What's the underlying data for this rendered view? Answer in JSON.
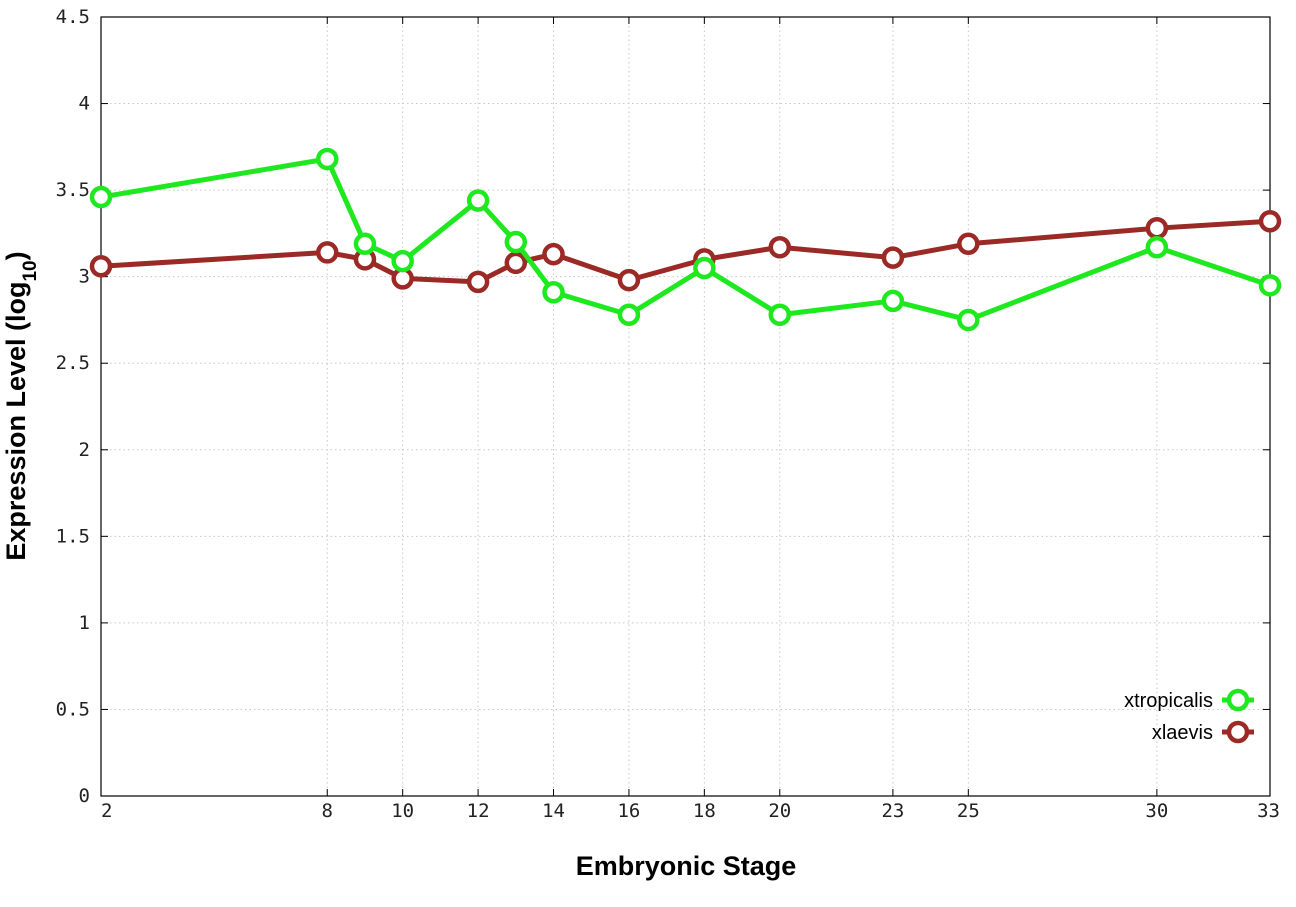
{
  "chart_data": {
    "type": "line",
    "xlabel": "Embryonic Stage",
    "ylabel_main": "Expression Level (log",
    "ylabel_sub": "10",
    "ylabel_close": ")",
    "x": [
      2,
      8,
      9,
      10,
      12,
      13,
      14,
      16,
      18,
      20,
      23,
      25,
      30,
      33
    ],
    "xticks": [
      2,
      8,
      10,
      12,
      14,
      16,
      18,
      20,
      23,
      25,
      30,
      33
    ],
    "xlim": [
      2,
      33
    ],
    "ylim": [
      0,
      4.5
    ],
    "yticks": [
      "0",
      "0.5",
      "1",
      "1.5",
      "2",
      "2.5",
      "3",
      "3.5",
      "4",
      "4.5"
    ],
    "grid": true,
    "legend_position": "bottom-right",
    "series": [
      {
        "name": "xtropicalis",
        "color": "#1ee81e",
        "values": [
          3.46,
          3.68,
          3.19,
          3.09,
          3.44,
          3.2,
          2.91,
          2.78,
          3.05,
          2.78,
          2.86,
          2.75,
          3.17,
          2.95
        ]
      },
      {
        "name": "xlaevis",
        "color": "#9b2a26",
        "values": [
          3.06,
          3.14,
          3.1,
          2.99,
          2.97,
          3.08,
          3.13,
          2.98,
          3.1,
          3.17,
          3.11,
          3.19,
          3.28,
          3.32
        ]
      }
    ]
  }
}
